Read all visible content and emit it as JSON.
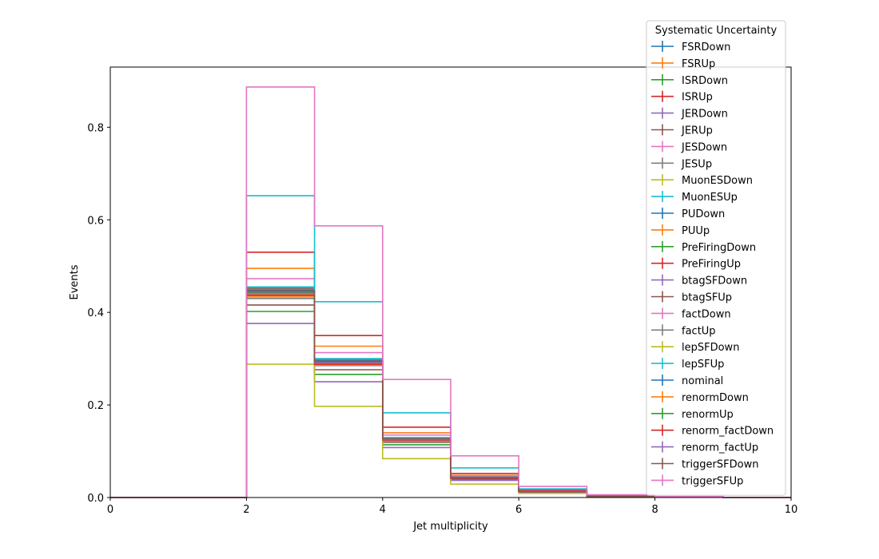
{
  "chart_data": {
    "type": "line",
    "title": "",
    "xlabel": "Jet multiplicity",
    "ylabel": "Events",
    "xlim": [
      0,
      10
    ],
    "ylim": [
      0,
      0.93
    ],
    "x_ticks": [
      0,
      2,
      4,
      6,
      8,
      10
    ],
    "y_ticks": [
      0.0,
      0.2,
      0.4,
      0.6,
      0.8
    ],
    "grid": false,
    "legend": {
      "title": "Systematic Uncertainty",
      "placement": "top-right"
    },
    "bin_edges": [
      0,
      1,
      2,
      3,
      4,
      5,
      6,
      7,
      8,
      9,
      10
    ],
    "series": [
      {
        "name": "FSRDown",
        "color": "#1f77b4",
        "values": [
          0,
          0,
          0.445,
          0.293,
          0.126,
          0.043,
          0.013,
          0.003,
          0.001,
          0
        ]
      },
      {
        "name": "FSRUp",
        "color": "#ff7f0e",
        "values": [
          0,
          0,
          0.495,
          0.327,
          0.14,
          0.048,
          0.015,
          0.003,
          0.001,
          0
        ]
      },
      {
        "name": "ISRDown",
        "color": "#2ca02c",
        "values": [
          0,
          0,
          0.402,
          0.266,
          0.114,
          0.039,
          0.012,
          0.003,
          0.001,
          0
        ]
      },
      {
        "name": "ISRUp",
        "color": "#d62728",
        "values": [
          0,
          0,
          0.53,
          0.35,
          0.152,
          0.052,
          0.016,
          0.004,
          0.001,
          0
        ]
      },
      {
        "name": "JERDown",
        "color": "#9467bd",
        "values": [
          0,
          0,
          0.376,
          0.25,
          0.108,
          0.037,
          0.011,
          0.003,
          0.001,
          0
        ]
      },
      {
        "name": "JERUp",
        "color": "#8c564b",
        "values": [
          0,
          0,
          0.416,
          0.276,
          0.119,
          0.041,
          0.012,
          0.003,
          0.001,
          0
        ]
      },
      {
        "name": "JESDown",
        "color": "#e377c2",
        "values": [
          0,
          0,
          0.473,
          0.313,
          0.135,
          0.046,
          0.014,
          0.003,
          0.001,
          0
        ]
      },
      {
        "name": "JESUp",
        "color": "#7f7f7f",
        "values": [
          0,
          0,
          0.43,
          0.285,
          0.122,
          0.042,
          0.013,
          0.003,
          0.001,
          0
        ]
      },
      {
        "name": "MuonESDown",
        "color": "#bcbd22",
        "values": [
          0,
          0,
          0.288,
          0.197,
          0.084,
          0.029,
          0.009,
          0.002,
          0.001,
          0
        ]
      },
      {
        "name": "MuonESUp",
        "color": "#17becf",
        "values": [
          0,
          0,
          0.652,
          0.423,
          0.183,
          0.064,
          0.019,
          0.005,
          0.001,
          0
        ]
      },
      {
        "name": "PUDown",
        "color": "#1f77b4",
        "values": [
          0,
          0,
          0.452,
          0.298,
          0.129,
          0.044,
          0.013,
          0.003,
          0.001,
          0
        ]
      },
      {
        "name": "PUUp",
        "color": "#ff7f0e",
        "values": [
          0,
          0,
          0.436,
          0.288,
          0.124,
          0.042,
          0.013,
          0.003,
          0.001,
          0
        ]
      },
      {
        "name": "PreFiringDown",
        "color": "#2ca02c",
        "values": [
          0,
          0,
          0.449,
          0.296,
          0.128,
          0.044,
          0.013,
          0.003,
          0.001,
          0
        ]
      },
      {
        "name": "PreFiringUp",
        "color": "#d62728",
        "values": [
          0,
          0,
          0.447,
          0.295,
          0.127,
          0.043,
          0.013,
          0.003,
          0.001,
          0
        ]
      },
      {
        "name": "btagSFDown",
        "color": "#9467bd",
        "values": [
          0,
          0,
          0.444,
          0.293,
          0.126,
          0.043,
          0.013,
          0.003,
          0.001,
          0
        ]
      },
      {
        "name": "btagSFUp",
        "color": "#8c564b",
        "values": [
          0,
          0,
          0.452,
          0.298,
          0.129,
          0.044,
          0.013,
          0.003,
          0.001,
          0
        ]
      },
      {
        "name": "factDown",
        "color": "#e377c2",
        "values": [
          0,
          0,
          0.44,
          0.29,
          0.125,
          0.043,
          0.013,
          0.003,
          0.001,
          0
        ]
      },
      {
        "name": "factUp",
        "color": "#7f7f7f",
        "values": [
          0,
          0,
          0.45,
          0.297,
          0.128,
          0.044,
          0.013,
          0.003,
          0.001,
          0
        ]
      },
      {
        "name": "lepSFDown",
        "color": "#bcbd22",
        "values": [
          0,
          0,
          0.438,
          0.289,
          0.125,
          0.042,
          0.013,
          0.003,
          0.001,
          0
        ]
      },
      {
        "name": "lepSFUp",
        "color": "#17becf",
        "values": [
          0,
          0,
          0.455,
          0.3,
          0.129,
          0.044,
          0.013,
          0.003,
          0.001,
          0
        ]
      },
      {
        "name": "nominal",
        "color": "#1f77b4",
        "values": [
          0,
          0,
          0.447,
          0.295,
          0.127,
          0.043,
          0.013,
          0.003,
          0.001,
          0
        ]
      },
      {
        "name": "renormDown",
        "color": "#ff7f0e",
        "values": [
          0,
          0,
          0.433,
          0.286,
          0.123,
          0.042,
          0.013,
          0.003,
          0.001,
          0
        ]
      },
      {
        "name": "renormUp",
        "color": "#2ca02c",
        "values": [
          0,
          0,
          0.442,
          0.292,
          0.126,
          0.043,
          0.013,
          0.003,
          0.001,
          0
        ]
      },
      {
        "name": "renorm_factDown",
        "color": "#d62728",
        "values": [
          0,
          0,
          0.437,
          0.288,
          0.124,
          0.042,
          0.013,
          0.003,
          0.001,
          0
        ]
      },
      {
        "name": "renorm_factUp",
        "color": "#9467bd",
        "values": [
          0,
          0,
          0.441,
          0.291,
          0.125,
          0.043,
          0.013,
          0.003,
          0.001,
          0
        ]
      },
      {
        "name": "triggerSFDown",
        "color": "#8c564b",
        "values": [
          0,
          0,
          0.446,
          0.294,
          0.127,
          0.043,
          0.013,
          0.003,
          0.001,
          0
        ]
      },
      {
        "name": "triggerSFUp",
        "color": "#e377c2",
        "values": [
          0,
          0,
          0.887,
          0.587,
          0.255,
          0.09,
          0.024,
          0.006,
          0.002,
          0
        ]
      }
    ]
  }
}
